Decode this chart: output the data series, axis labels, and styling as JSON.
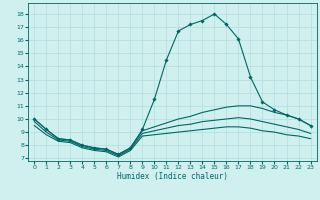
{
  "hours": [
    0,
    1,
    2,
    3,
    4,
    5,
    6,
    7,
    8,
    9,
    10,
    11,
    12,
    13,
    14,
    15,
    16,
    17,
    18,
    19,
    20,
    21,
    22,
    23
  ],
  "main_line": [
    10.0,
    9.2,
    8.5,
    8.4,
    8.0,
    7.8,
    7.7,
    7.3,
    7.8,
    9.2,
    11.5,
    14.5,
    16.7,
    17.2,
    17.5,
    18.0,
    17.2,
    16.1,
    13.2,
    11.3,
    10.7,
    10.3,
    10.0,
    9.5
  ],
  "line2": [
    10.0,
    9.2,
    8.5,
    8.4,
    8.0,
    7.8,
    7.7,
    7.3,
    7.8,
    9.1,
    9.4,
    9.7,
    10.0,
    10.2,
    10.5,
    10.7,
    10.9,
    11.0,
    11.0,
    10.8,
    10.5,
    10.3,
    10.0,
    9.5
  ],
  "line3": [
    9.8,
    9.0,
    8.4,
    8.3,
    7.9,
    7.7,
    7.6,
    7.2,
    7.7,
    8.9,
    9.1,
    9.3,
    9.5,
    9.6,
    9.8,
    9.9,
    10.0,
    10.1,
    10.0,
    9.8,
    9.6,
    9.4,
    9.2,
    8.9
  ],
  "line4": [
    9.5,
    8.8,
    8.3,
    8.2,
    7.8,
    7.6,
    7.5,
    7.1,
    7.6,
    8.7,
    8.8,
    8.9,
    9.0,
    9.1,
    9.2,
    9.3,
    9.4,
    9.4,
    9.3,
    9.1,
    9.0,
    8.8,
    8.7,
    8.5
  ],
  "line_color": "#006666",
  "bg_color": "#d0f0f0",
  "grid_color": "#b8e0e0",
  "ylabel_values": [
    7,
    8,
    9,
    10,
    11,
    12,
    13,
    14,
    15,
    16,
    17,
    18
  ],
  "xlabel": "Humidex (Indice chaleur)",
  "ylim": [
    6.8,
    18.8
  ],
  "xlim": [
    -0.5,
    23.5
  ]
}
